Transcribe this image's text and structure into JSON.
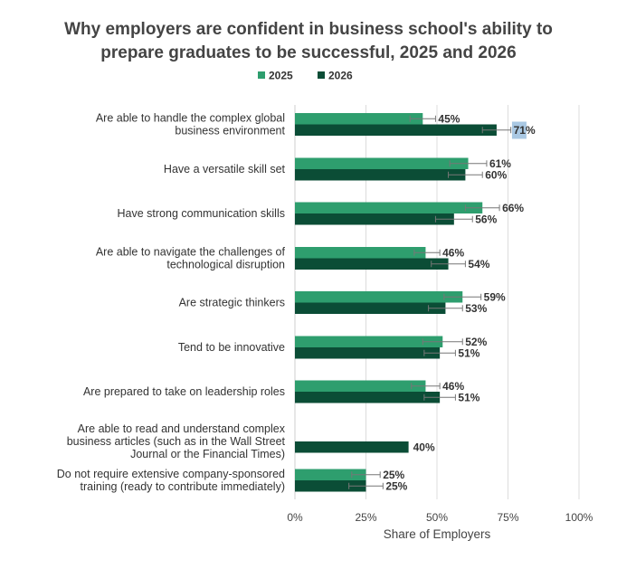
{
  "chart_data": {
    "type": "bar",
    "orientation": "horizontal",
    "title": "Why employers are confident in business school's ability to prepare graduates to be successful, 2025 and 2026",
    "title_lines": [
      "Why employers are confident in business school's ability to",
      "prepare graduates to be successful, 2025 and 2026"
    ],
    "xlabel": "Share of Employers",
    "ylabel": "",
    "xlim": [
      0,
      100
    ],
    "xticks": [
      0,
      25,
      50,
      75,
      100
    ],
    "xtick_labels": [
      "0%",
      "25%",
      "50%",
      "75%",
      "100%"
    ],
    "grid": "vertical",
    "legend": "top-center",
    "categories": [
      [
        "Are able to handle the complex global",
        "business environment"
      ],
      [
        "Have a versatile skill set"
      ],
      [
        "Have strong communication skills"
      ],
      [
        "Are able to navigate the challenges of",
        "technological disruption"
      ],
      [
        "Are strategic thinkers"
      ],
      [
        "Tend to be innovative"
      ],
      [
        "Are prepared to take on leadership roles"
      ],
      [
        "Are able to read and understand complex",
        "business articles (such as in the Wall Street",
        "Journal or the Financial Times)"
      ],
      [
        "Do not require extensive company-sponsored",
        "training (ready to contribute immediately)"
      ]
    ],
    "series": [
      {
        "name": "2025",
        "color": "#2e9e6e",
        "values": [
          45,
          61,
          66,
          46,
          59,
          52,
          46,
          null,
          25
        ],
        "labels": [
          "45%",
          "61%",
          "66%",
          "46%",
          "59%",
          "52%",
          "46%",
          "",
          "25%"
        ],
        "error_low": [
          40.5,
          54.5,
          60,
          42,
          52.5,
          45,
          41,
          null,
          20
        ],
        "error_high": [
          49.5,
          67.5,
          72,
          51,
          65.5,
          59,
          51,
          null,
          30
        ]
      },
      {
        "name": "2026",
        "color": "#0b4d36",
        "values": [
          71,
          60,
          56,
          54,
          53,
          51,
          51,
          40,
          25
        ],
        "labels": [
          "71%",
          "60%",
          "56%",
          "54%",
          "53%",
          "51%",
          "51%",
          "40%",
          "25%"
        ],
        "error_low": [
          66,
          54,
          49.5,
          48,
          47,
          45.5,
          45.5,
          null,
          19
        ],
        "error_high": [
          76,
          66,
          62.5,
          60,
          59,
          56.5,
          56.5,
          null,
          31
        ]
      }
    ],
    "highlight": {
      "category_index": 0,
      "series_index": 1,
      "color": "#a9c8e3"
    },
    "colors": {
      "bar_2025": "#2e9e6e",
      "bar_2026": "#0b4d36",
      "grid": "#dcdcdc",
      "error_bar": "#777777",
      "highlight": "#a9c8e3"
    }
  }
}
